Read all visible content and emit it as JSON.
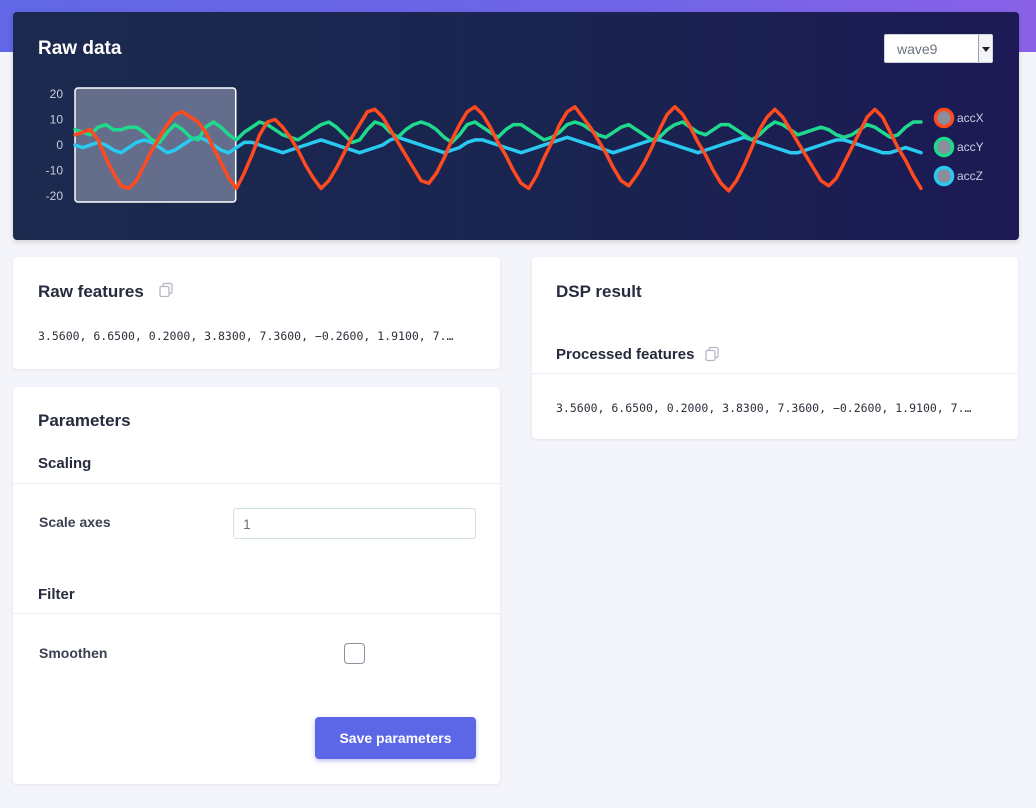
{
  "raw_data": {
    "title": "Raw data",
    "sample_select": {
      "value": "wave9"
    },
    "chart_data": {
      "type": "line",
      "y_ticks": [
        "20",
        "10",
        "0",
        "-10",
        "-20"
      ],
      "ylim": [
        -20,
        20
      ],
      "selection_window": {
        "start_fraction": 0.0,
        "end_fraction": 0.19
      },
      "series": [
        {
          "name": "accX",
          "color": "#ff4a1f",
          "values": [
            4,
            5,
            6,
            2,
            -5,
            -11,
            -16,
            -17,
            -14,
            -8,
            -2,
            3,
            8,
            12,
            13,
            11,
            9,
            5,
            -1,
            -7,
            -13,
            -17,
            -11,
            -4,
            4,
            9,
            10,
            7,
            3,
            -2,
            -8,
            -13,
            -17,
            -14,
            -9,
            -3,
            3,
            8,
            13,
            14,
            11,
            6,
            1,
            -4,
            -9,
            -14,
            -15,
            -11,
            -5,
            2,
            8,
            13,
            15,
            12,
            7,
            1,
            -4,
            -10,
            -15,
            -17,
            -12,
            -5,
            1,
            8,
            13,
            15,
            11,
            7,
            2,
            -3,
            -9,
            -14,
            -16,
            -12,
            -7,
            -1,
            6,
            12,
            15,
            12,
            7,
            1,
            -4,
            -10,
            -15,
            -18,
            -14,
            -8,
            -1,
            6,
            11,
            14,
            11,
            6,
            1,
            -4,
            -9,
            -14,
            -16,
            -13,
            -7,
            -1,
            5,
            11,
            14,
            11,
            5,
            -1,
            -6,
            -12,
            -17
          ]
        },
        {
          "name": "accY",
          "color": "#1fd98c",
          "values": [
            6,
            5,
            4,
            7,
            8,
            6,
            6,
            7,
            7,
            5,
            2,
            1,
            5,
            8,
            6,
            3,
            2,
            7,
            9,
            7,
            4,
            2,
            5,
            7,
            9,
            8,
            6,
            4,
            3,
            2,
            4,
            6,
            8,
            9,
            7,
            4,
            1,
            2,
            6,
            9,
            8,
            5,
            3,
            6,
            8,
            9,
            8,
            6,
            3,
            1,
            4,
            8,
            9,
            7,
            5,
            3,
            6,
            8,
            8,
            6,
            4,
            2,
            3,
            5,
            8,
            9,
            8,
            6,
            4,
            3,
            5,
            7,
            8,
            6,
            4,
            2,
            3,
            6,
            8,
            9,
            7,
            5,
            4,
            6,
            8,
            8,
            6,
            4,
            2,
            4,
            7,
            9,
            8,
            6,
            4,
            5,
            6,
            7,
            6,
            4,
            3,
            4,
            6,
            8,
            7,
            5,
            3,
            4,
            7,
            9,
            9
          ]
        },
        {
          "name": "accZ",
          "color": "#29c9f0",
          "values": [
            0,
            -1,
            0,
            1,
            0,
            -2,
            -3,
            -1,
            1,
            2,
            1,
            -1,
            -3,
            -2,
            0,
            2,
            3,
            2,
            0,
            -2,
            -3,
            -1,
            1,
            1,
            0,
            -1,
            -2,
            -3,
            -2,
            -1,
            0,
            1,
            2,
            1,
            0,
            -1,
            -2,
            -3,
            -2,
            -1,
            0,
            2,
            3,
            2,
            1,
            0,
            -1,
            -2,
            -3,
            -2,
            -1,
            1,
            2,
            2,
            1,
            0,
            -1,
            -2,
            -3,
            -2,
            -1,
            0,
            1,
            2,
            3,
            2,
            1,
            0,
            -1,
            -2,
            -3,
            -2,
            -1,
            0,
            1,
            2,
            2,
            1,
            0,
            -1,
            -2,
            -3,
            -2,
            -1,
            0,
            1,
            2,
            3,
            2,
            1,
            0,
            -1,
            -2,
            -3,
            -3,
            -2,
            -1,
            0,
            1,
            2,
            2,
            1,
            0,
            -1,
            -2,
            -3,
            -3,
            -2,
            -1,
            -2,
            -3
          ]
        }
      ],
      "legend": [
        "accX",
        "accY",
        "accZ"
      ]
    }
  },
  "raw_features": {
    "title": "Raw features",
    "copy_icon": "copy-icon",
    "value": "3.5600, 6.6500, 0.2000, 3.8300, 7.3600, −0.2600, 1.9100, 7.…"
  },
  "parameters": {
    "title": "Parameters",
    "scaling": {
      "title": "Scaling",
      "scale_axes_label": "Scale axes",
      "scale_axes_value": "1"
    },
    "filter": {
      "title": "Filter",
      "smoothen_label": "Smoothen",
      "smoothen_checked": false
    },
    "save_label": "Save parameters"
  },
  "dsp_result": {
    "title": "DSP result",
    "processed_title": "Processed features",
    "copy_icon": "copy-icon",
    "value": "3.5600, 6.6500, 0.2000, 3.8300, 7.3600, −0.2600, 1.9100, 7.…"
  }
}
